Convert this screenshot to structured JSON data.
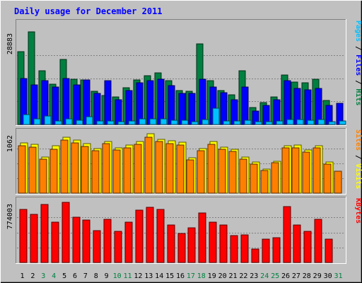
{
  "title": "Daily usage for December 2011",
  "colors": {
    "background": "#c0c0c0",
    "title": "#0000ff",
    "hits": "#008040",
    "files": "#0000ff",
    "pages": "#00c0ff",
    "visits": "#ffff00",
    "sites": "#ff8000",
    "kbytes": "#ff0000",
    "weekend_day": "#008040",
    "weekday": "#000000"
  },
  "chart_data": [
    {
      "type": "bar",
      "name": "hits-files-pages",
      "ymax_label": "28883",
      "ymax": 28883,
      "series_labels": [
        {
          "text": "Hits",
          "color": "#008040"
        },
        {
          "text": "Files",
          "color": "#0000ff"
        },
        {
          "text": "Pages",
          "color": "#00c0ff"
        }
      ],
      "series": [
        {
          "name": "Hits",
          "values": [
            22800,
            28883,
            16800,
            12600,
            20300,
            14100,
            13900,
            10300,
            9000,
            8600,
            11400,
            13900,
            15200,
            16000,
            13700,
            10600,
            10300,
            25200,
            13700,
            10600,
            9200,
            16800,
            5400,
            6900,
            8600,
            15500,
            13300,
            12900,
            14100,
            7600,
            0
          ]
        },
        {
          "name": "Files",
          "values": [
            14400,
            12400,
            13600,
            11700,
            14400,
            12300,
            13900,
            9600,
            13600,
            7700,
            10600,
            12900,
            13700,
            14100,
            12100,
            9600,
            9600,
            14100,
            11700,
            9900,
            7700,
            11700,
            4200,
            5900,
            7700,
            13600,
            11300,
            10900,
            11300,
            5900,
            6600
          ]
        },
        {
          "name": "Pages",
          "values": [
            3000,
            1700,
            2700,
            1200,
            1700,
            1400,
            2400,
            1200,
            1200,
            800,
            1200,
            1700,
            1700,
            1700,
            1300,
            1300,
            800,
            1600,
            5100,
            1200,
            1000,
            1300,
            900,
            800,
            1200,
            1600,
            1600,
            1300,
            1600,
            800,
            1100
          ]
        }
      ]
    },
    {
      "type": "bar",
      "name": "visits-sites",
      "ymax_label": "1062",
      "ymax": 1062,
      "series_labels": [
        {
          "text": "Visits",
          "color": "#ffff00"
        },
        {
          "text": "Sites",
          "color": "#ff8000"
        }
      ],
      "series": [
        {
          "name": "Visits",
          "values": [
            900,
            870,
            640,
            850,
            1000,
            950,
            880,
            800,
            925,
            810,
            860,
            920,
            1062,
            965,
            935,
            905,
            630,
            800,
            920,
            825,
            790,
            640,
            560,
            430,
            570,
            850,
            860,
            775,
            850,
            560,
            0
          ]
        },
        {
          "name": "Sites",
          "values": [
            850,
            820,
            610,
            790,
            950,
            900,
            840,
            760,
            880,
            770,
            810,
            870,
            1000,
            920,
            890,
            860,
            600,
            760,
            870,
            780,
            750,
            610,
            520,
            400,
            540,
            810,
            815,
            735,
            810,
            520,
            390
          ]
        }
      ]
    },
    {
      "type": "bar",
      "name": "kbytes",
      "ymax_label": "774003",
      "ymax": 774003,
      "series_labels": [
        {
          "text": "KBytes",
          "color": "#ff0000"
        }
      ],
      "series": [
        {
          "name": "KBytes",
          "values": [
            682000,
            621000,
            749000,
            517000,
            774003,
            584000,
            548000,
            414000,
            554000,
            404000,
            520000,
            677000,
            712000,
            682000,
            487000,
            372000,
            450000,
            640000,
            517000,
            484000,
            349000,
            359000,
            170000,
            297000,
            320000,
            718000,
            487000,
            404000,
            551000,
            297000,
            0
          ]
        }
      ]
    }
  ],
  "days": [
    {
      "label": "1",
      "weekend": false
    },
    {
      "label": "2",
      "weekend": false
    },
    {
      "label": "3",
      "weekend": true
    },
    {
      "label": "4",
      "weekend": true
    },
    {
      "label": "5",
      "weekend": false
    },
    {
      "label": "6",
      "weekend": false
    },
    {
      "label": "7",
      "weekend": false
    },
    {
      "label": "8",
      "weekend": false
    },
    {
      "label": "9",
      "weekend": false
    },
    {
      "label": "10",
      "weekend": true
    },
    {
      "label": "11",
      "weekend": true
    },
    {
      "label": "12",
      "weekend": false
    },
    {
      "label": "13",
      "weekend": false
    },
    {
      "label": "14",
      "weekend": false
    },
    {
      "label": "15",
      "weekend": false
    },
    {
      "label": "16",
      "weekend": false
    },
    {
      "label": "17",
      "weekend": true
    },
    {
      "label": "18",
      "weekend": true
    },
    {
      "label": "19",
      "weekend": false
    },
    {
      "label": "20",
      "weekend": false
    },
    {
      "label": "21",
      "weekend": false
    },
    {
      "label": "22",
      "weekend": false
    },
    {
      "label": "23",
      "weekend": false
    },
    {
      "label": "24",
      "weekend": true
    },
    {
      "label": "25",
      "weekend": true
    },
    {
      "label": "26",
      "weekend": false
    },
    {
      "label": "27",
      "weekend": false
    },
    {
      "label": "28",
      "weekend": false
    },
    {
      "label": "29",
      "weekend": false
    },
    {
      "label": "30",
      "weekend": false
    },
    {
      "label": "31",
      "weekend": true
    }
  ]
}
